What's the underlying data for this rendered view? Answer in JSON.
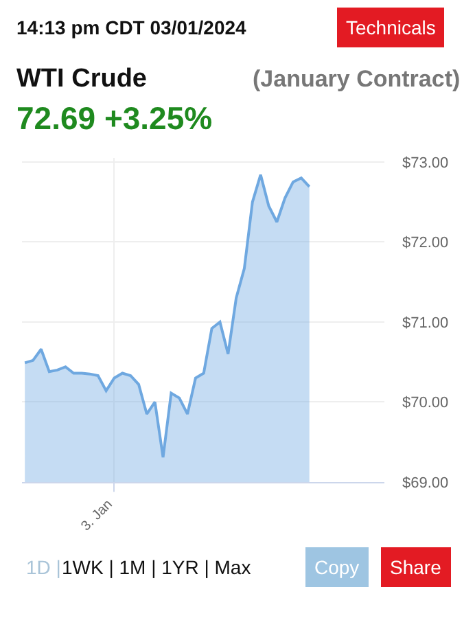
{
  "chart_data": {
    "type": "area",
    "categories": [
      null,
      null,
      null,
      null,
      null,
      null,
      null,
      null,
      null,
      null,
      null,
      null,
      null,
      null,
      null,
      null,
      null,
      null,
      null,
      null,
      null,
      null,
      null,
      null,
      null,
      null,
      null,
      null,
      null,
      null,
      null,
      null,
      null,
      null,
      null,
      null
    ],
    "series": [
      {
        "color": "#6fa8e0",
        "values": [
          70.49,
          70.52,
          70.66,
          70.38,
          70.4,
          70.44,
          70.36,
          70.36,
          70.35,
          70.33,
          70.14,
          70.3,
          70.36,
          70.33,
          70.22,
          69.85,
          70.0,
          69.31,
          70.11,
          70.05,
          69.85,
          70.3,
          70.36,
          70.92,
          71.0,
          70.6,
          71.3,
          71.67,
          72.5,
          72.84,
          72.45,
          72.25,
          72.55,
          72.75,
          72.8,
          72.69
        ]
      }
    ],
    "ylim": [
      69,
      73.05
    ],
    "yticks": [
      {
        "value": 69,
        "label": "$69.00"
      },
      {
        "value": 70,
        "label": "$70.00"
      },
      {
        "value": 71,
        "label": "$71.00"
      },
      {
        "value": 72,
        "label": "$72.00"
      },
      {
        "value": 73,
        "label": "$73.00"
      }
    ],
    "grid": "y",
    "marker": "none",
    "line_style": "solid",
    "annotations": [
      "3. Jan",
      "14:13 pm CDT 03/01/2024",
      "Technicals",
      "WTI Crude",
      "(January Contract)",
      "72.69 +3.25%",
      "1D |",
      "1WK | 1M | 1YR | Max",
      "Copy",
      "Share"
    ]
  }
}
